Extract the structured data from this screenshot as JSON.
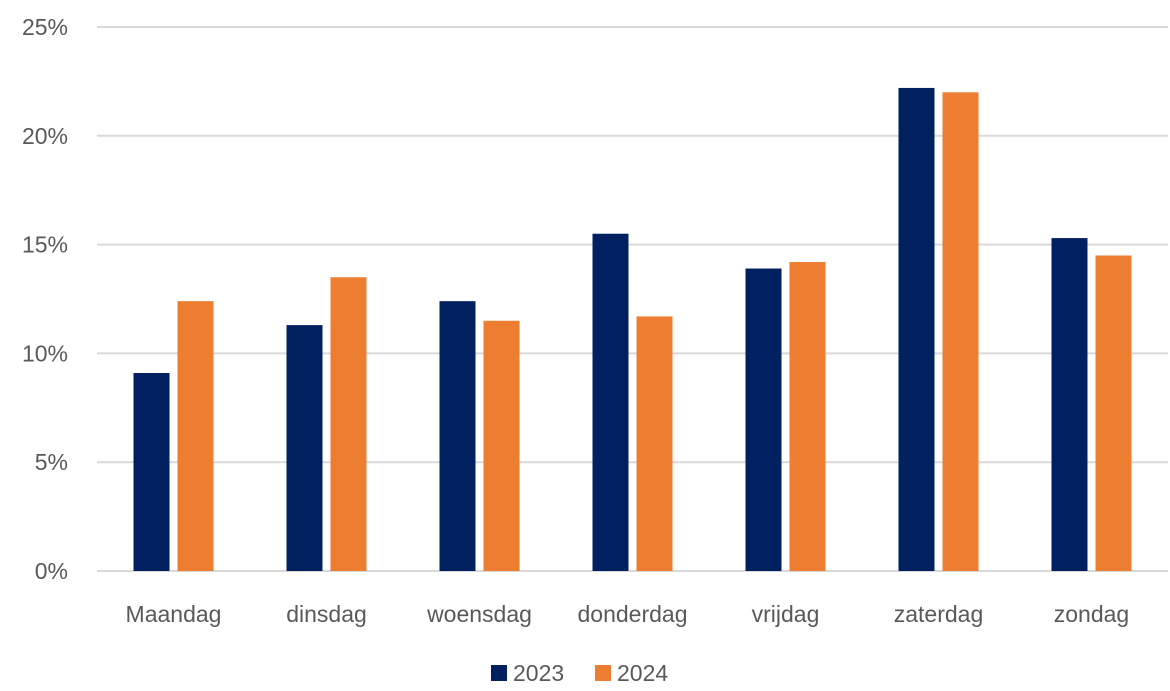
{
  "chart_data": {
    "type": "bar",
    "title": "",
    "xlabel": "",
    "ylabel": "",
    "categories": [
      "Maandag",
      "dinsdag",
      "woensdag",
      "donderdag",
      "vrijdag",
      "zaterdag",
      "zondag"
    ],
    "series": [
      {
        "name": "2023",
        "color": "#002060",
        "values": [
          9.1,
          11.3,
          12.4,
          15.5,
          13.9,
          22.2,
          15.3
        ]
      },
      {
        "name": "2024",
        "color": "#ED7D31",
        "values": [
          12.4,
          13.5,
          11.5,
          11.7,
          14.2,
          22.0,
          14.5
        ]
      }
    ],
    "ylim": [
      0,
      25
    ],
    "yticks": [
      0,
      5,
      10,
      15,
      20,
      25
    ],
    "ytick_labels": [
      "0%",
      "5%",
      "10%",
      "15%",
      "20%",
      "25%"
    ],
    "grid": true,
    "legend_position": "bottom"
  }
}
